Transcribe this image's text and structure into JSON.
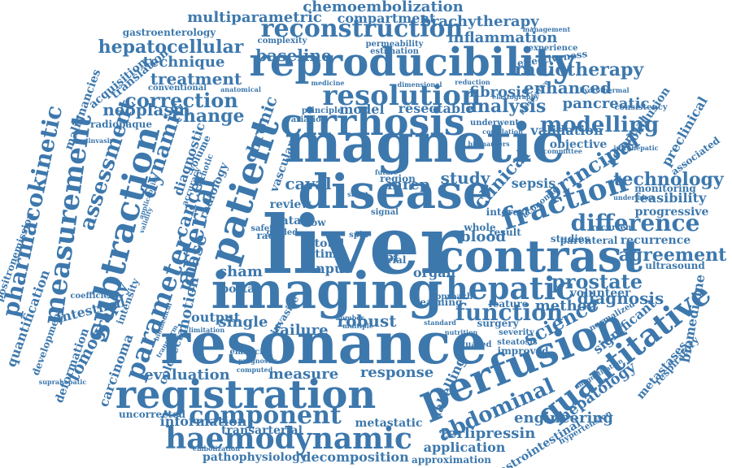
{
  "word_color": "#3d78ad",
  "background_color": "#ffffff",
  "words": [
    "liver",
    "resonance",
    "magnetic",
    "imaging",
    "disease",
    "contrast",
    "registration",
    "reproducibility",
    "perfusion",
    "cirrhosis",
    "patient",
    "subtraction",
    "quantitative",
    "haemodynamic",
    "measurement",
    "hepatic",
    "reconstruction",
    "parameter",
    "function",
    "pharmacokinetic",
    "arterial",
    "resolution",
    "component",
    "fraction",
    "difference",
    "dynamic",
    "assessment",
    "modelling",
    "principal",
    "correction",
    "abdominal",
    "hepatocellular",
    "technology",
    "prostate",
    "science",
    "baseline",
    "tomography",
    "analysis",
    "chemoembolization",
    "multiparametric",
    "compartment",
    "brachytherapy",
    "inflammation",
    "radiotherapy",
    "enhanced",
    "treatment",
    "change",
    "neoplasm",
    "technique",
    "fibrosis",
    "pancreatic",
    "validation",
    "study",
    "clinical",
    "cancer",
    "phase",
    "diagnostic",
    "chronic",
    "vascular",
    "agreement",
    "recurrence",
    "diagnosis",
    "method",
    "robust",
    "failure",
    "measure",
    "response",
    "evaluation",
    "engineering",
    "application",
    "decomposition",
    "pathophysiology",
    "approximation",
    "terlipressin",
    "information",
    "transarterial",
    "metastatic",
    "labelling",
    "hepatology",
    "metastases",
    "respiratory",
    "biomedicine",
    "preclinical",
    "associated",
    "feasibility",
    "progressive",
    "ultrasound",
    "volunteer",
    "blood",
    "caval",
    "sepsis",
    "motion",
    "output",
    "single",
    "intestinal",
    "carcinoma",
    "quantification",
    "positronemission",
    "malignancies",
    "acquisition",
    "translation",
    "gastroenterology",
    "complexity",
    "permeability",
    "estimation",
    "management",
    "experience",
    "effectiveness",
    "conventional",
    "anatomical",
    "radiopaque",
    "noninvasive",
    "development",
    "deformation",
    "colorectal",
    "uncorrected",
    "coefficient",
    "intensity",
    "significant",
    "potential",
    "conclusion",
    "consistency",
    "hydrothermal",
    "reduction",
    "dimensional",
    "medicine",
    "portal",
    "review",
    "data",
    "sham",
    "input",
    "tlbf",
    "organ",
    "trial",
    "total",
    "time",
    "flow",
    "radio",
    "safety",
    "invasive",
    "model",
    "resectable",
    "volume",
    "radiology",
    "mrep",
    "region",
    "whole",
    "result",
    "studies",
    "parenteral",
    "interest",
    "monitoring",
    "objective",
    "economic",
    "surgery",
    "severity",
    "steatosis",
    "improved",
    "squared",
    "normalized",
    "learning",
    "feature",
    "approach",
    "nutrition",
    "underwent",
    "correlation",
    "principle",
    "variation",
    "spin",
    "future",
    "signal",
    "gastrointestinal",
    "hypertension",
    "suprahepatic",
    "infrahepatic",
    "transform",
    "elasticity",
    "computed",
    "biomedical",
    "limitation",
    "prognostic",
    "standard",
    "number",
    "multiple",
    "committee",
    "undertaken",
    "cirrhotic",
    "accuracy",
    "guided",
    "recurrent",
    "applicability",
    "validity",
    "embolization",
    "shunt",
    "magnetization",
    "biomarkers",
    "elastography",
    "prospective"
  ]
}
